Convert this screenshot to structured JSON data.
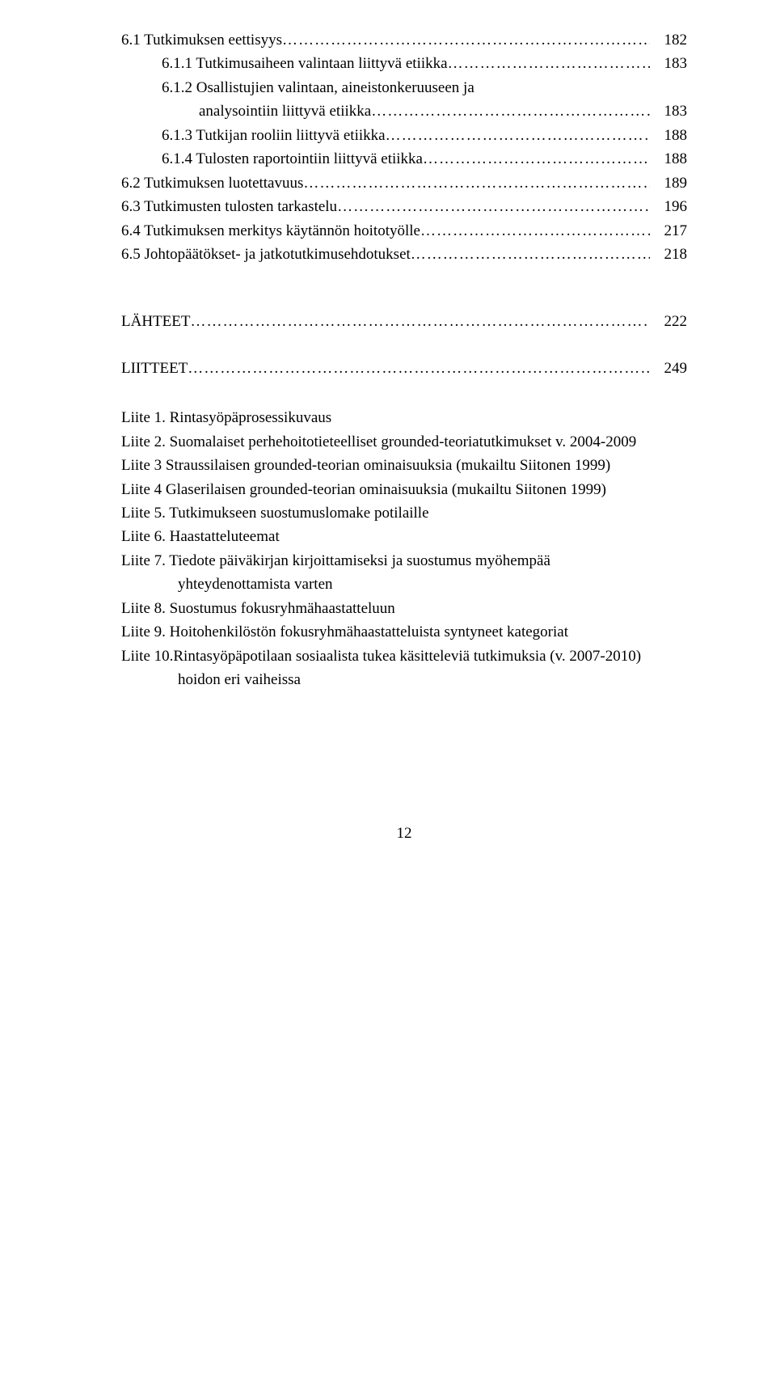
{
  "toc": [
    {
      "label": "6.1 Tutkimuksen eettisyys",
      "page": "182",
      "indent": 0
    },
    {
      "label": "6.1.1 Tutkimusaiheen valintaan liittyvä etiikka",
      "page": "183",
      "indent": 1
    },
    {
      "label": "6.1.2 Osallistujien valintaan, aineistonkeruuseen ja",
      "page": "",
      "indent": 1,
      "nodots": true
    },
    {
      "label": "analysointiin liittyvä etiikka",
      "page": "183",
      "indent": 2
    },
    {
      "label": "6.1.3 Tutkijan rooliin liittyvä etiikka",
      "page": "188",
      "indent": 1
    },
    {
      "label": "6.1.4 Tulosten raportointiin liittyvä etiikka",
      "page": "188",
      "indent": 1
    },
    {
      "label": "6.2 Tutkimuksen luotettavuus",
      "page": "189",
      "indent": 0
    },
    {
      "label": "6.3 Tutkimusten tulosten tarkastelu",
      "page": "196",
      "indent": 0
    },
    {
      "label": "6.4 Tutkimuksen merkitys käytännön hoitotyölle",
      "page": "217",
      "indent": 0
    },
    {
      "label": "6.5 Johtopäätökset- ja jatkotutkimusehdotukset",
      "page": "218",
      "indent": 0
    }
  ],
  "lahteet": {
    "label": "LÄHTEET",
    "page": "222"
  },
  "liitteet": {
    "label": "LIITTEET",
    "page": "249"
  },
  "liite": [
    "Liite 1.  Rintasyöpäprosessikuvaus",
    "Liite 2.  Suomalaiset perhehoitotieteelliset grounded-teoriatutkimukset v. 2004-2009",
    "Liite 3   Straussilaisen grounded-teorian ominaisuuksia (mukailtu Siitonen 1999)",
    "Liite 4   Glaserilaisen grounded-teorian ominaisuuksia (mukailtu Siitonen 1999)",
    "Liite 5.  Tutkimukseen suostumuslomake potilaille",
    "Liite 6.  Haastatteluteemat",
    "Liite 7.  Tiedote päiväkirjan kirjoittamiseksi ja suostumus myöhempää",
    "yhteydenottamista varten",
    "Liite 8.  Suostumus fokusryhmähaastatteluun",
    "Liite 9.  Hoitohenkilöstön fokusryhmähaastatteluista syntyneet kategoriat",
    "Liite 10.Rintasyöpäpotilaan sosiaalista tukea käsitteleviä tutkimuksia (v. 2007-2010)",
    "hoidon eri vaiheissa"
  ],
  "liite_indent_lines": [
    7,
    11
  ],
  "page_number": "12"
}
